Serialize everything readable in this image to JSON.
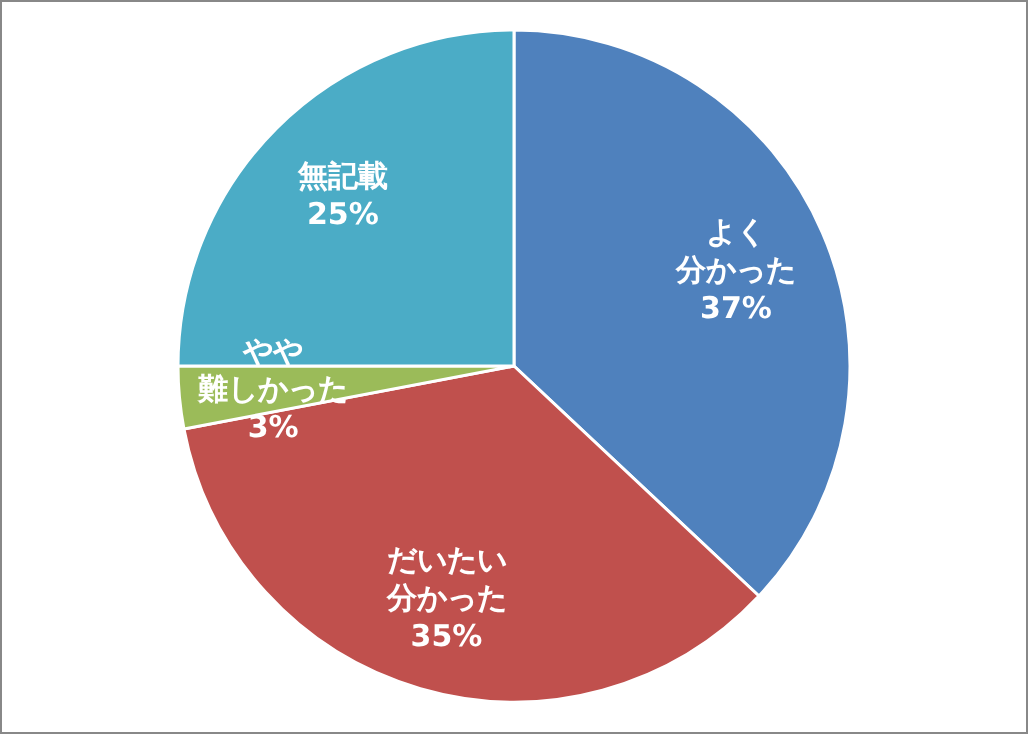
{
  "chart_data": {
    "type": "pie",
    "categories": [
      "よく分かった",
      "だいたい分かった",
      "やや難しかった",
      "無記載"
    ],
    "values": [
      37,
      35,
      3,
      25
    ],
    "value_labels": [
      "37%",
      "35%",
      "3%",
      "25%"
    ],
    "colors": [
      "#4f81bd",
      "#c0504d",
      "#9bbb59",
      "#4bacc6"
    ]
  }
}
